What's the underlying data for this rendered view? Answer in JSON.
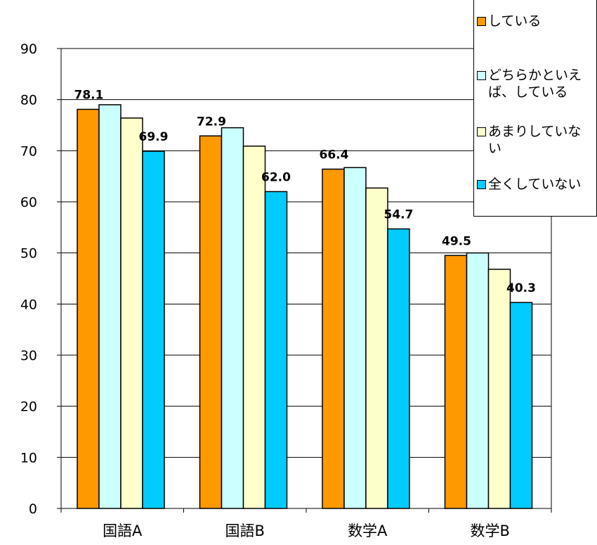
{
  "chart_data": {
    "type": "bar",
    "categories": [
      "国語A",
      "国語B",
      "数学A",
      "数学B"
    ],
    "series": [
      {
        "name": "している",
        "values": [
          78.1,
          72.9,
          66.4,
          49.5
        ],
        "color": "#ff9900"
      },
      {
        "name": "どちらかといえば、している",
        "values": [
          79.0,
          74.5,
          66.7,
          50.0
        ],
        "color": "#ccffff"
      },
      {
        "name": "あまりしていない",
        "values": [
          76.4,
          70.9,
          62.7,
          46.8
        ],
        "color": "#ffffcc"
      },
      {
        "name": "全くしていない",
        "values": [
          69.9,
          62.0,
          54.7,
          40.3
        ],
        "color": "#00ccff"
      }
    ],
    "labeled_series": [
      0,
      3
    ],
    "yticks": [
      "0",
      "10",
      "20",
      "30",
      "40",
      "50",
      "60",
      "70",
      "80",
      "90"
    ],
    "ylim": [
      0,
      90
    ],
    "legend_position": "top-right",
    "grid": true
  },
  "legend": {
    "items": [
      {
        "label": "している"
      },
      {
        "label": "どちらかといえ\nば、している"
      },
      {
        "label": "あまりしていな\nい"
      },
      {
        "label": "全くしていない"
      }
    ]
  },
  "data_labels": {
    "s0": [
      "78.1",
      "72.9",
      "66.4",
      "49.5"
    ],
    "s3": [
      "69.9",
      "62.0",
      "54.7",
      "40.3"
    ]
  }
}
